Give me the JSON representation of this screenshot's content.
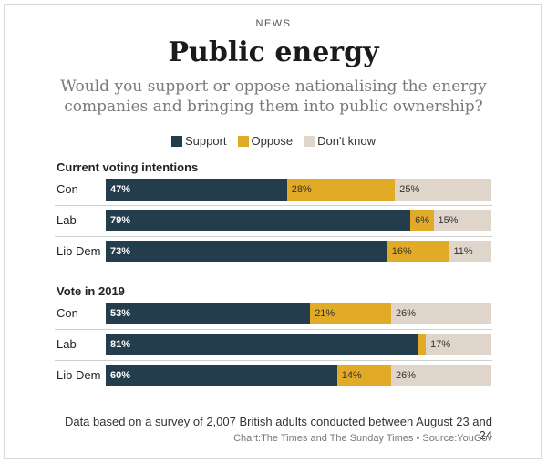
{
  "kicker": "NEWS",
  "title": "Public energy",
  "subtitle": "Would you support or oppose nationalising the energy companies and bringing them into public ownership?",
  "legend": [
    {
      "label": "Support",
      "color": "#243d4d"
    },
    {
      "label": "Oppose",
      "color": "#e1aa27"
    },
    {
      "label": "Don't know",
      "color": "#dfd5ca"
    }
  ],
  "footer": {
    "note": "Data based on a survey of 2,007 British adults conducted between August 23 and 24",
    "source": "Chart:The Times and The Sunday Times • Source:YouGov"
  },
  "chart_data": {
    "type": "bar",
    "orientation": "horizontal",
    "stacked": true,
    "title": "Public energy",
    "subtitle": "Would you support or oppose nationalising the energy companies and bringing them into public ownership?",
    "legend_position": "top-center",
    "series_names": [
      "Support",
      "Oppose",
      "Don't know"
    ],
    "groups": [
      {
        "title": "Current voting intentions",
        "rows": [
          {
            "label": "Con",
            "values": [
              47,
              28,
              25
            ],
            "labels": [
              "47%",
              "28%",
              "25%"
            ]
          },
          {
            "label": "Lab",
            "values": [
              79,
              6,
              15
            ],
            "labels": [
              "79%",
              "6%",
              "15%"
            ]
          },
          {
            "label": "Lib Dem",
            "values": [
              73,
              16,
              11
            ],
            "labels": [
              "73%",
              "16%",
              "11%"
            ]
          }
        ]
      },
      {
        "title": "Vote in 2019",
        "rows": [
          {
            "label": "Con",
            "values": [
              53,
              21,
              26
            ],
            "labels": [
              "53%",
              "21%",
              "26%"
            ]
          },
          {
            "label": "Lab",
            "values": [
              81,
              2,
              17
            ],
            "labels": [
              "81%",
              "",
              "17%"
            ]
          },
          {
            "label": "Lib Dem",
            "values": [
              60,
              14,
              26
            ],
            "labels": [
              "60%",
              "14%",
              "26%"
            ]
          }
        ]
      }
    ]
  }
}
